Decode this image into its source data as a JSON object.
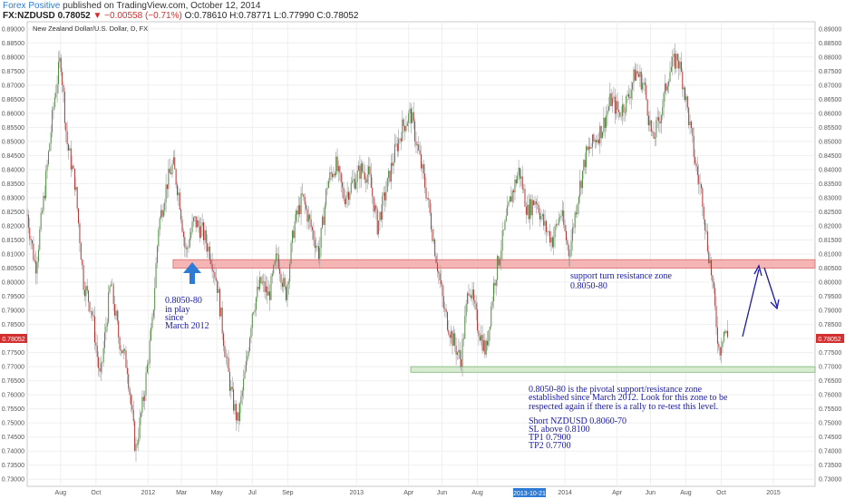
{
  "header": {
    "author": "Forex Positive",
    "published_text": " published on TradingView.com, October 12, 2014",
    "symbol": "FX:NZDUSD",
    "last": "0.78052",
    "change": "▼ −0.00558 (−0.71%)",
    "open": "O:0.78610",
    "high": "H:0.78771",
    "low": "L:0.77990",
    "close": "C:0.78052"
  },
  "chart_data": {
    "type": "candlestick",
    "title": "New Zealand Dollar/U.S. Dollar, D, FX",
    "ylim": [
      0.7275,
      0.8925
    ],
    "y_ticks": [
      "0.89000",
      "0.88500",
      "0.88000",
      "0.87500",
      "0.87000",
      "0.86500",
      "0.86000",
      "0.85500",
      "0.85000",
      "0.84500",
      "0.84000",
      "0.83500",
      "0.83000",
      "0.82500",
      "0.82000",
      "0.81500",
      "0.81000",
      "0.80500",
      "0.80000",
      "0.79500",
      "0.79000",
      "0.78500",
      "0.78000",
      "0.77500",
      "0.77000",
      "0.76500",
      "0.76000",
      "0.75500",
      "0.75000",
      "0.74500",
      "0.74000",
      "0.73500",
      "0.73000"
    ],
    "x_ticks": [
      {
        "label": "Aug",
        "t": 2011.58
      },
      {
        "label": "Oct",
        "t": 2011.75
      },
      {
        "label": "2012",
        "t": 2012.0
      },
      {
        "label": "Mar",
        "t": 2012.16
      },
      {
        "label": "May",
        "t": 2012.33
      },
      {
        "label": "Jul",
        "t": 2012.5
      },
      {
        "label": "Sep",
        "t": 2012.67
      },
      {
        "label": "2013",
        "t": 2013.0
      },
      {
        "label": "Apr",
        "t": 2013.25
      },
      {
        "label": "Jun",
        "t": 2013.41
      },
      {
        "label": "Aug",
        "t": 2013.58
      },
      {
        "label": "2014",
        "t": 2014.0
      },
      {
        "label": "Apr",
        "t": 2014.25
      },
      {
        "label": "Jun",
        "t": 2014.41
      },
      {
        "label": "Aug",
        "t": 2014.58
      },
      {
        "label": "Oct",
        "t": 2014.75
      },
      {
        "label": "2015",
        "t": 2015.0
      }
    ],
    "x_range": [
      2011.42,
      2015.2
    ],
    "crosshair_date": "2013-10-21",
    "last_price_label": "0.78052",
    "price_path": [
      [
        2011.42,
        0.824
      ],
      [
        2011.46,
        0.805
      ],
      [
        2011.5,
        0.83
      ],
      [
        2011.55,
        0.865
      ],
      [
        2011.58,
        0.88
      ],
      [
        2011.61,
        0.85
      ],
      [
        2011.65,
        0.835
      ],
      [
        2011.69,
        0.8
      ],
      [
        2011.73,
        0.79
      ],
      [
        2011.77,
        0.765
      ],
      [
        2011.82,
        0.8
      ],
      [
        2011.86,
        0.78
      ],
      [
        2011.9,
        0.77
      ],
      [
        2011.94,
        0.74
      ],
      [
        2011.98,
        0.76
      ],
      [
        2012.02,
        0.785
      ],
      [
        2012.05,
        0.82
      ],
      [
        2012.09,
        0.835
      ],
      [
        2012.12,
        0.842
      ],
      [
        2012.15,
        0.83
      ],
      [
        2012.18,
        0.81
      ],
      [
        2012.22,
        0.822
      ],
      [
        2012.26,
        0.818
      ],
      [
        2012.3,
        0.81
      ],
      [
        2012.33,
        0.8
      ],
      [
        2012.37,
        0.775
      ],
      [
        2012.4,
        0.76
      ],
      [
        2012.43,
        0.75
      ],
      [
        2012.47,
        0.77
      ],
      [
        2012.5,
        0.79
      ],
      [
        2012.54,
        0.8
      ],
      [
        2012.58,
        0.795
      ],
      [
        2012.62,
        0.81
      ],
      [
        2012.66,
        0.795
      ],
      [
        2012.7,
        0.82
      ],
      [
        2012.74,
        0.83
      ],
      [
        2012.78,
        0.82
      ],
      [
        2012.82,
        0.81
      ],
      [
        2012.86,
        0.835
      ],
      [
        2012.9,
        0.842
      ],
      [
        2012.94,
        0.83
      ],
      [
        2012.98,
        0.835
      ],
      [
        2013.02,
        0.84
      ],
      [
        2013.06,
        0.838
      ],
      [
        2013.1,
        0.82
      ],
      [
        2013.14,
        0.832
      ],
      [
        2013.18,
        0.845
      ],
      [
        2013.22,
        0.855
      ],
      [
        2013.26,
        0.86
      ],
      [
        2013.3,
        0.845
      ],
      [
        2013.34,
        0.83
      ],
      [
        2013.38,
        0.81
      ],
      [
        2013.42,
        0.79
      ],
      [
        2013.46,
        0.78
      ],
      [
        2013.5,
        0.772
      ],
      [
        2013.54,
        0.8
      ],
      [
        2013.58,
        0.785
      ],
      [
        2013.62,
        0.775
      ],
      [
        2013.66,
        0.8
      ],
      [
        2013.7,
        0.815
      ],
      [
        2013.74,
        0.83
      ],
      [
        2013.78,
        0.84
      ],
      [
        2013.82,
        0.825
      ],
      [
        2013.86,
        0.83
      ],
      [
        2013.9,
        0.82
      ],
      [
        2013.94,
        0.815
      ],
      [
        2013.98,
        0.825
      ],
      [
        2014.02,
        0.81
      ],
      [
        2014.06,
        0.83
      ],
      [
        2014.1,
        0.845
      ],
      [
        2014.14,
        0.85
      ],
      [
        2014.18,
        0.855
      ],
      [
        2014.22,
        0.865
      ],
      [
        2014.26,
        0.86
      ],
      [
        2014.3,
        0.865
      ],
      [
        2014.34,
        0.875
      ],
      [
        2014.38,
        0.87
      ],
      [
        2014.42,
        0.85
      ],
      [
        2014.46,
        0.86
      ],
      [
        2014.5,
        0.875
      ],
      [
        2014.54,
        0.88
      ],
      [
        2014.57,
        0.87
      ],
      [
        2014.6,
        0.855
      ],
      [
        2014.63,
        0.84
      ],
      [
        2014.66,
        0.83
      ],
      [
        2014.68,
        0.815
      ],
      [
        2014.7,
        0.805
      ],
      [
        2014.72,
        0.79
      ],
      [
        2014.74,
        0.775
      ],
      [
        2014.76,
        0.783
      ],
      [
        2014.78,
        0.7805
      ]
    ],
    "zones": [
      {
        "name": "resistance",
        "y_low": 0.805,
        "y_high": 0.808,
        "x_start": 2012.12,
        "x_end": 2015.2,
        "color": "#f4a8a8"
      },
      {
        "name": "support",
        "y_low": 0.768,
        "y_high": 0.77,
        "x_start": 2013.26,
        "x_end": 2015.2,
        "color": "#cfe8c8"
      }
    ]
  },
  "annotations": {
    "left": [
      "0.8050-80",
      "in play",
      "since",
      "March 2012"
    ],
    "zone": [
      "support turn resistance zone",
      "0.8050-80"
    ],
    "notes": [
      "0.8050-80 is the pivotal support/resistance zone",
      "established since March 2012. Look for this zone to be",
      "respected again if there is a rally to re-test this level."
    ],
    "trade": [
      "Short NZDUSD 0.8060-70",
      "SL above 0.8100",
      "TP1 0.7900",
      "TP2 0.7700"
    ]
  },
  "colors": {
    "up_candle": "#4a8a3a",
    "down_candle": "#b03030",
    "annotation_text": "#1a1aa8",
    "arrow_blue": "#2e7bd6",
    "price_label_bg": "#d32f2f",
    "crosshair_label_bg": "#2e7bd6"
  }
}
